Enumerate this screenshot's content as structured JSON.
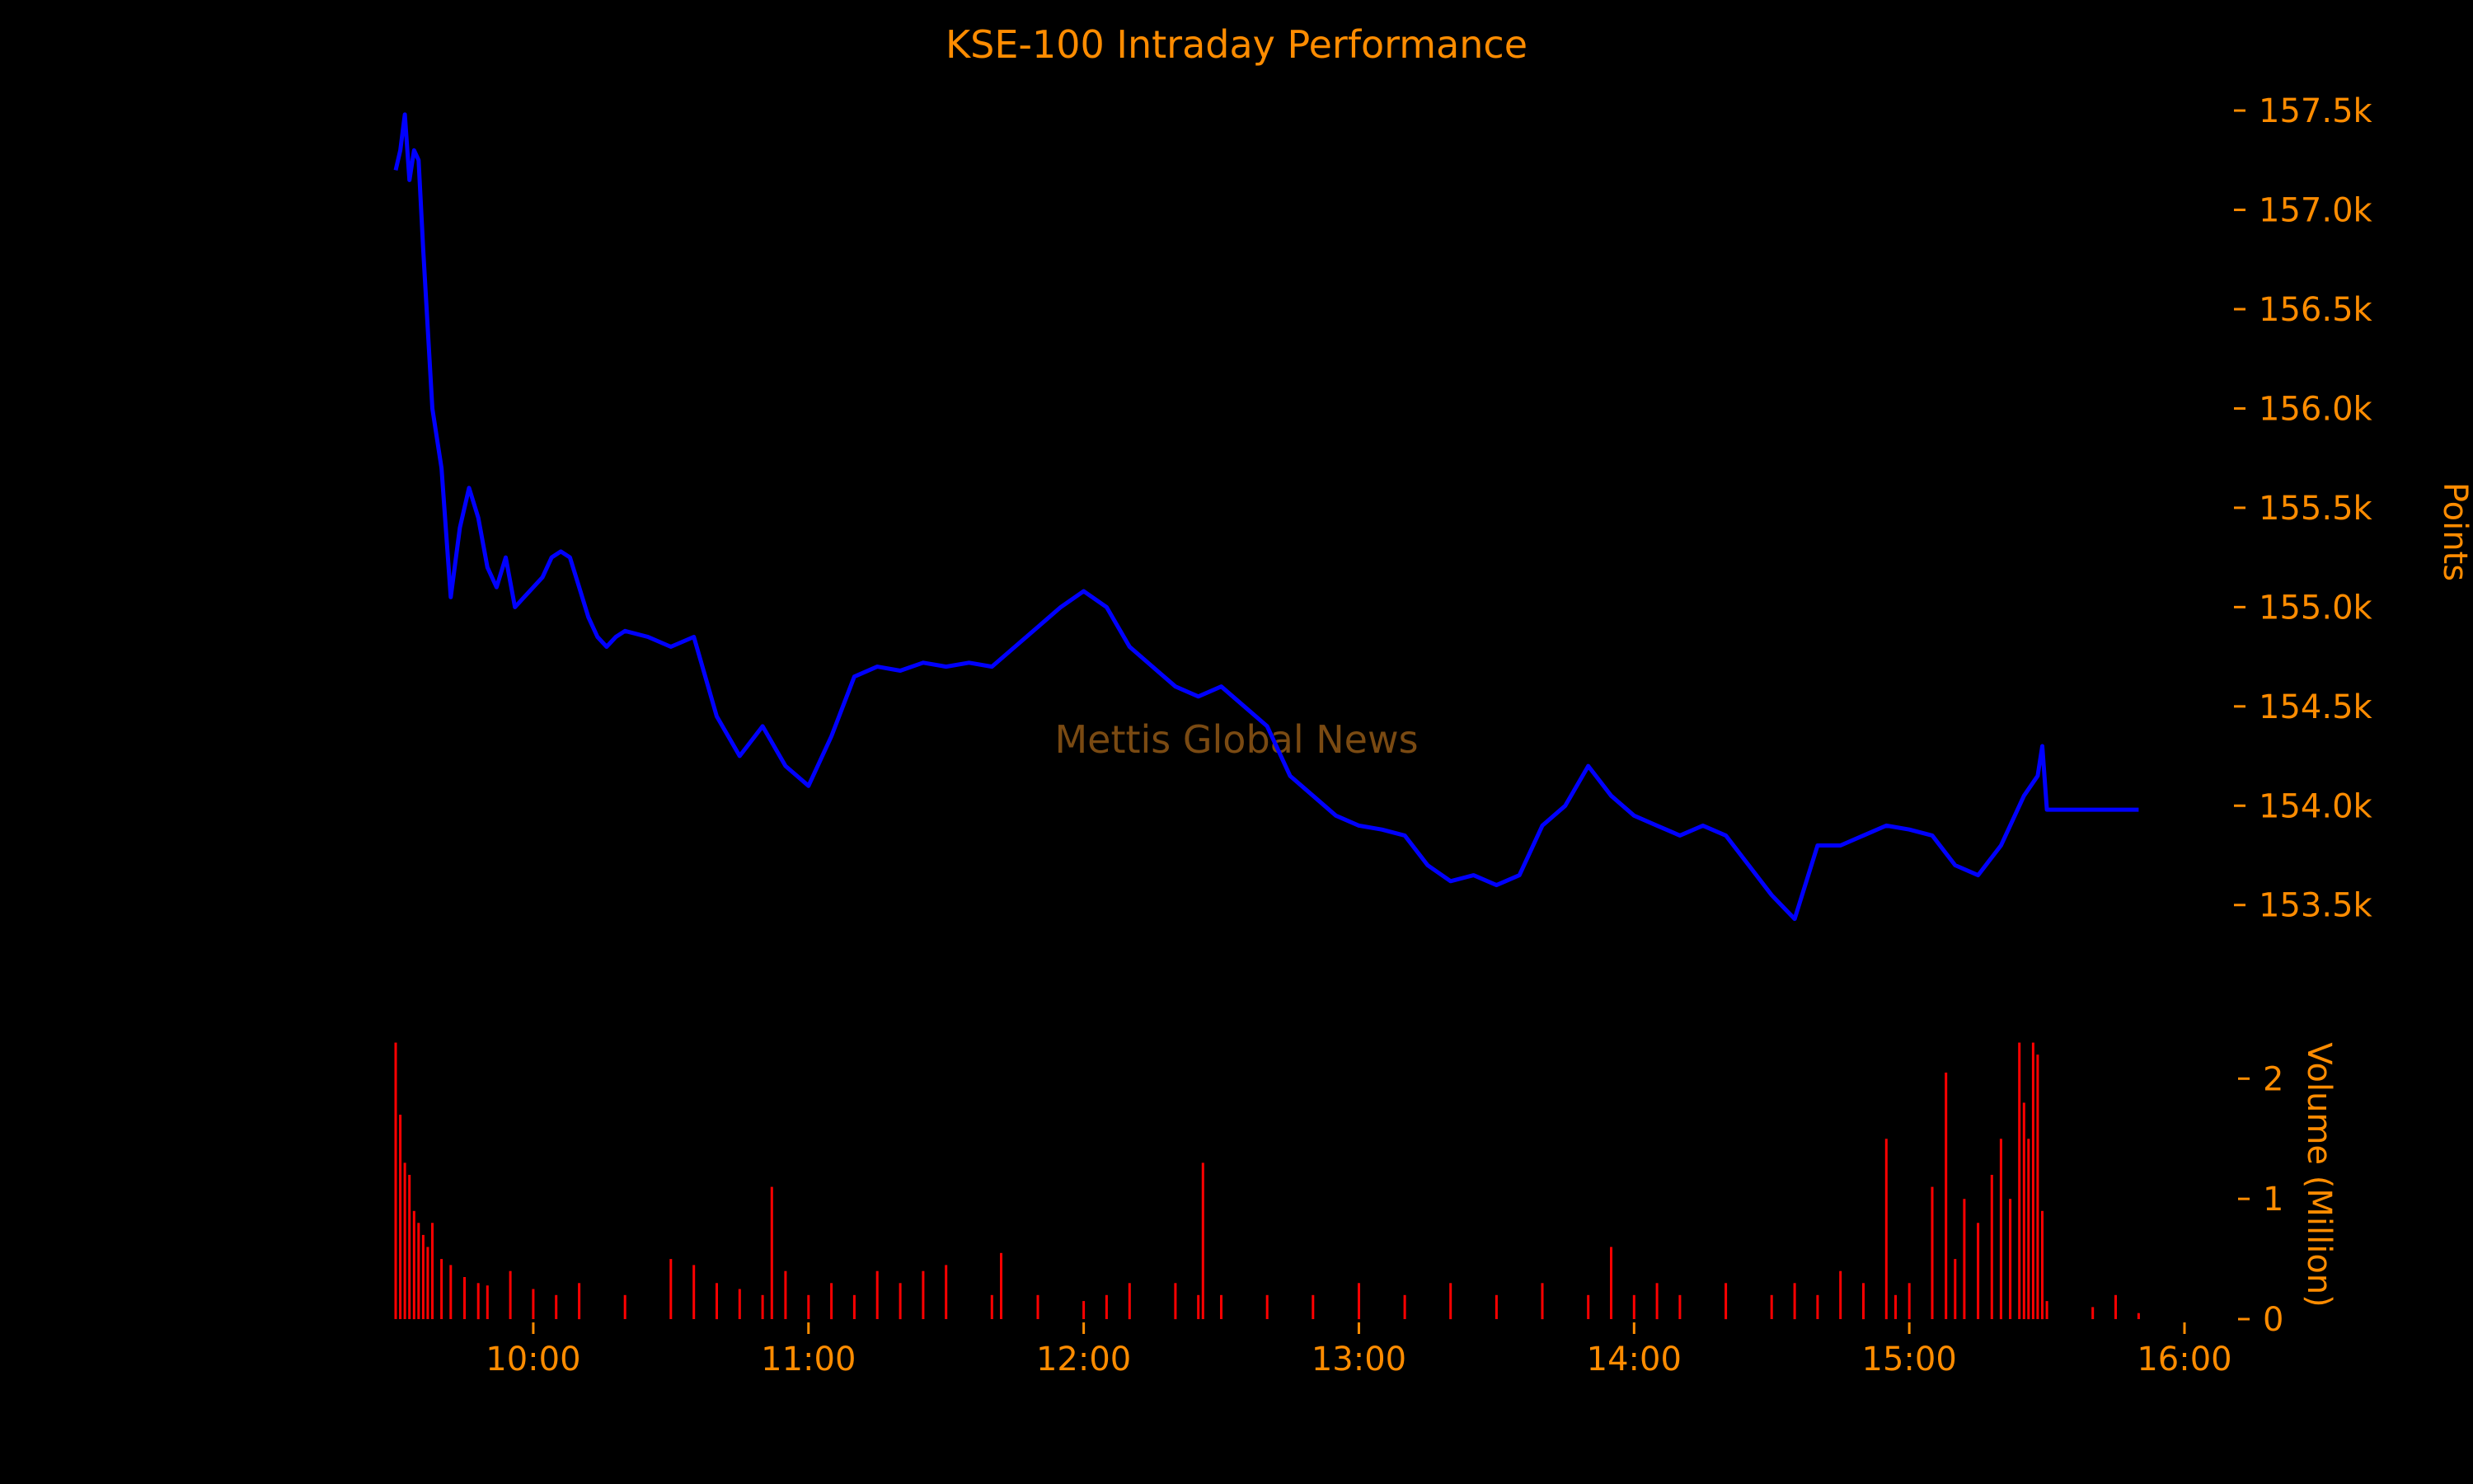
{
  "colors": {
    "background": "#000000",
    "text": "#ff8c00",
    "price_line": "#0000ff",
    "volume_bars": "#ff0000",
    "watermark": "#7a4a12"
  },
  "watermark": "Mettis Global News",
  "chart_data": [
    {
      "type": "line",
      "title": "KSE-100 Intraday Performance",
      "ylabel": "Points",
      "xlabel": "",
      "ylim": [
        153200,
        157600
      ],
      "y_ticks": [
        153500,
        154000,
        154500,
        155000,
        155500,
        156000,
        156500,
        157000,
        157500
      ],
      "y_tick_labels": [
        "153.5k",
        "154.0k",
        "154.5k",
        "155.0k",
        "155.5k",
        "156.0k",
        "156.5k",
        "157.0k",
        "157.5k"
      ],
      "y_axis_side": "right",
      "grid": false,
      "series": [
        {
          "x": [
            "09:30",
            "09:31",
            "09:32",
            "09:33",
            "09:34",
            "09:35",
            "09:36",
            "09:38",
            "09:40",
            "09:42",
            "09:44",
            "09:46",
            "09:48",
            "09:50",
            "09:52",
            "09:54",
            "09:56",
            "09:58",
            "10:00",
            "10:02",
            "10:04",
            "10:06",
            "10:08",
            "10:10",
            "10:12",
            "10:14",
            "10:16",
            "10:18",
            "10:20",
            "10:25",
            "10:30",
            "10:35",
            "10:40",
            "10:45",
            "10:50",
            "10:55",
            "11:00",
            "11:05",
            "11:10",
            "11:15",
            "11:20",
            "11:25",
            "11:30",
            "11:35",
            "11:40",
            "11:45",
            "11:50",
            "11:55",
            "12:00",
            "12:05",
            "12:10",
            "12:15",
            "12:20",
            "12:25",
            "12:30",
            "12:35",
            "12:40",
            "12:45",
            "12:50",
            "12:55",
            "13:00",
            "13:05",
            "13:10",
            "13:15",
            "13:20",
            "13:25",
            "13:30",
            "13:35",
            "13:40",
            "13:45",
            "13:50",
            "13:55",
            "14:00",
            "14:05",
            "14:10",
            "14:15",
            "14:20",
            "14:25",
            "14:30",
            "14:35",
            "14:40",
            "14:45",
            "14:50",
            "14:55",
            "15:00",
            "15:05",
            "15:10",
            "15:15",
            "15:20",
            "15:25",
            "15:28",
            "15:29",
            "15:30",
            "15:31",
            "15:40",
            "15:50"
          ],
          "values": [
            157200,
            157300,
            157480,
            157150,
            157300,
            157250,
            156800,
            156000,
            155700,
            155050,
            155400,
            155600,
            155450,
            155200,
            155100,
            155250,
            155000,
            155050,
            155100,
            155150,
            155250,
            155280,
            155250,
            155100,
            154950,
            154850,
            154800,
            154850,
            154880,
            154850,
            154800,
            154850,
            154450,
            154250,
            154400,
            154200,
            154100,
            154350,
            154650,
            154700,
            154680,
            154720,
            154700,
            154720,
            154700,
            154800,
            154900,
            155000,
            155080,
            155000,
            154800,
            154700,
            154600,
            154550,
            154600,
            154500,
            154400,
            154150,
            154050,
            153950,
            153900,
            153880,
            153850,
            153700,
            153620,
            153650,
            153600,
            153650,
            153900,
            154000,
            154200,
            154050,
            153950,
            153900,
            153850,
            153900,
            153850,
            153700,
            153550,
            153430,
            153800,
            153800,
            153850,
            153900,
            153880,
            153850,
            153700,
            153650,
            153800,
            154050,
            154150,
            154300,
            153980,
            153980,
            153980,
            153980
          ]
        }
      ]
    },
    {
      "type": "bar",
      "ylabel": "Volume (Million)",
      "xlabel": "",
      "ylim": [
        0,
        2.4
      ],
      "y_ticks": [
        0,
        1,
        2
      ],
      "y_tick_labels": [
        "0",
        "1",
        "2"
      ],
      "y_axis_side": "right",
      "x_range": [
        "09:30",
        "16:00"
      ],
      "x_ticks": [
        "10:00",
        "11:00",
        "12:00",
        "13:00",
        "14:00",
        "15:00",
        "16:00"
      ],
      "grid": false,
      "series": [
        {
          "x": [
            "09:30",
            "09:31",
            "09:32",
            "09:33",
            "09:34",
            "09:35",
            "09:36",
            "09:37",
            "09:38",
            "09:40",
            "09:42",
            "09:45",
            "09:48",
            "09:50",
            "09:55",
            "10:00",
            "10:05",
            "10:10",
            "10:20",
            "10:30",
            "10:35",
            "10:40",
            "10:45",
            "10:50",
            "10:52",
            "10:55",
            "11:00",
            "11:05",
            "11:10",
            "11:15",
            "11:20",
            "11:25",
            "11:30",
            "11:40",
            "11:42",
            "11:50",
            "12:00",
            "12:05",
            "12:10",
            "12:20",
            "12:25",
            "12:26",
            "12:30",
            "12:40",
            "12:50",
            "13:00",
            "13:10",
            "13:20",
            "13:30",
            "13:40",
            "13:50",
            "13:55",
            "14:00",
            "14:05",
            "14:10",
            "14:20",
            "14:30",
            "14:35",
            "14:40",
            "14:45",
            "14:50",
            "14:55",
            "14:57",
            "15:00",
            "15:05",
            "15:08",
            "15:10",
            "15:12",
            "15:15",
            "15:18",
            "15:20",
            "15:22",
            "15:24",
            "15:25",
            "15:26",
            "15:27",
            "15:28",
            "15:29",
            "15:30",
            "15:40",
            "15:45",
            "15:50"
          ],
          "values": [
            2.3,
            1.7,
            1.3,
            1.2,
            0.9,
            0.8,
            0.7,
            0.6,
            0.8,
            0.5,
            0.45,
            0.35,
            0.3,
            0.28,
            0.4,
            0.25,
            0.2,
            0.3,
            0.2,
            0.5,
            0.45,
            0.3,
            0.25,
            0.2,
            1.1,
            0.4,
            0.2,
            0.3,
            0.2,
            0.4,
            0.3,
            0.4,
            0.45,
            0.2,
            0.55,
            0.2,
            0.15,
            0.2,
            0.3,
            0.3,
            0.2,
            1.3,
            0.2,
            0.2,
            0.2,
            0.3,
            0.2,
            0.3,
            0.2,
            0.3,
            0.2,
            0.6,
            0.2,
            0.3,
            0.2,
            0.3,
            0.2,
            0.3,
            0.2,
            0.4,
            0.3,
            1.5,
            0.2,
            0.3,
            1.1,
            2.05,
            0.5,
            1.0,
            0.8,
            1.2,
            1.5,
            1.0,
            2.3,
            1.8,
            1.5,
            2.3,
            2.2,
            0.9,
            0.15,
            0.1,
            0.2,
            0.05
          ]
        }
      ]
    }
  ]
}
